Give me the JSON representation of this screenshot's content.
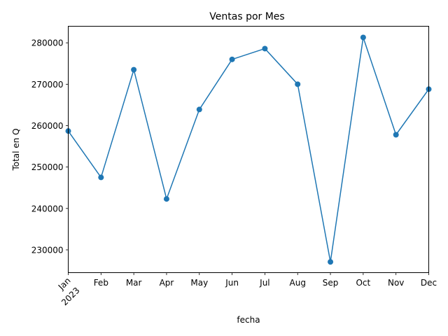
{
  "chart_data": {
    "type": "line",
    "title": "Ventas por Mes",
    "xlabel": "fecha",
    "ylabel": "Total en Q",
    "categories": [
      "Jan",
      "Feb",
      "Mar",
      "Apr",
      "May",
      "Jun",
      "Jul",
      "Aug",
      "Sep",
      "Oct",
      "Nov",
      "Dec"
    ],
    "year_label": "2023",
    "series": [
      {
        "values": [
          258700,
          247500,
          273500,
          242300,
          263900,
          276000,
          278600,
          270000,
          227100,
          281300,
          257800,
          268800
        ],
        "color": "#1f77b4"
      }
    ],
    "ylim": [
      224500,
      284000
    ],
    "yticks": [
      230000,
      240000,
      250000,
      260000,
      270000,
      280000
    ],
    "grid": false,
    "legend": "none"
  }
}
